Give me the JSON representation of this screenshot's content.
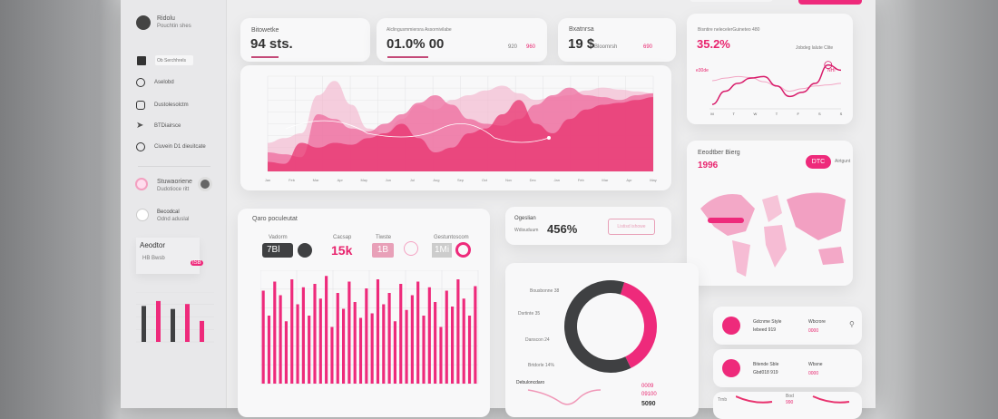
{
  "colors": {
    "accent": "#ee2a7b",
    "dark": "#3f4042",
    "light_pink": "#f6b6cf"
  },
  "sidebar": {
    "user": {
      "name": "Ridolu",
      "subtitle": "Pouchtin shes"
    },
    "search_placeholder": "Ob Serchhrels",
    "items": [
      {
        "label": "Aselobd",
        "icon": "chart-icon"
      },
      {
        "label": "Dustolesolctm",
        "icon": "chat-icon"
      },
      {
        "label": "BTDiairsce",
        "icon": "send-icon"
      },
      {
        "label": "Ciuvein D1 dieuitcate",
        "icon": "search-icon"
      }
    ],
    "profile": {
      "name": "Stuwaoriene",
      "subtitle": "Dudotioce ritt"
    },
    "account": {
      "name": "Becodcal",
      "subtitle": "Odnd aduslal"
    },
    "mini_widget": {
      "title": "Aeodtor",
      "label": "HB Bwsb",
      "badge": "ISB"
    },
    "mini_bars": [
      {
        "value": 72,
        "color": "#3f4042"
      },
      {
        "value": 82,
        "color": "#ee2a7b"
      },
      {
        "value": 66,
        "color": "#3f4042"
      },
      {
        "value": 76,
        "color": "#ee2a7b"
      },
      {
        "value": 42,
        "color": "#ee2a7b"
      }
    ]
  },
  "stats": [
    {
      "label": "Bitowetke",
      "value": "94 sts."
    },
    {
      "label": "Alclingusmmiersra Assornivilabe",
      "value": "01.0% 00",
      "extra1": "920",
      "extra2": "960"
    },
    {
      "label": "Bxatnrsa",
      "value": "19 $",
      "sub": "Bloomrsh",
      "extra": "690"
    }
  ],
  "area_chart": {
    "series": [
      {
        "color": "#f4b0ca",
        "values": [
          30,
          35,
          40,
          80,
          95,
          70,
          45,
          40,
          55,
          70,
          65,
          75,
          80,
          85,
          90,
          82,
          75,
          78,
          80,
          85,
          88,
          86,
          84,
          82
        ]
      },
      {
        "color": "#ee6a9c",
        "values": [
          20,
          18,
          15,
          60,
          55,
          45,
          42,
          50,
          60,
          72,
          80,
          70,
          55,
          50,
          48,
          55,
          70,
          80,
          88,
          80,
          78,
          75,
          80,
          82
        ]
      },
      {
        "color": "#e8336f",
        "values": [
          10,
          8,
          30,
          25,
          30,
          28,
          35,
          40,
          50,
          35,
          20,
          25,
          40,
          45,
          60,
          75,
          50,
          40,
          55,
          65,
          70,
          72,
          75,
          78
        ]
      }
    ],
    "x_labels": [
      "Jan",
      "Feb",
      "Mar",
      "Apr",
      "May",
      "Jun",
      "Jul",
      "Aug",
      "Sep",
      "Oct",
      "Nov",
      "Dec",
      "Jan",
      "Feb",
      "Mar",
      "Apr",
      "May"
    ]
  },
  "trend_card": {
    "label": "Bisntire nelecelerGuineteo 480",
    "value": "35.2%",
    "legend": "Jobdeg lalute Clite",
    "marker": "NHI",
    "side": "e30de",
    "x_labels": [
      "M",
      "T",
      "W",
      "T",
      "F",
      "S",
      "S"
    ],
    "values": [
      5,
      30,
      45,
      55,
      58,
      40,
      20,
      28,
      45,
      80,
      70
    ],
    "values2": [
      50,
      55,
      58,
      56,
      48,
      40,
      30,
      35,
      40,
      42,
      45
    ]
  },
  "bar_card": {
    "title": "Qaro poculeutat",
    "metrics": [
      {
        "label": "Vadorm",
        "value": "7Bl"
      },
      {
        "label": "Cacsap",
        "value": "15k"
      },
      {
        "label": "Tiwste",
        "value": "1B"
      },
      {
        "label": "Gestuntoscom",
        "value": "1Mi"
      }
    ],
    "values": [
      82,
      60,
      90,
      78,
      55,
      92,
      70,
      85,
      60,
      88,
      75,
      95,
      50,
      80,
      66,
      90,
      72,
      58,
      84,
      62,
      92,
      70,
      80,
      55,
      88,
      65,
      78,
      90,
      60,
      85,
      72,
      50,
      82,
      68,
      92,
      75,
      60,
      86
    ]
  },
  "small_card": {
    "label": "Ogeslian",
    "sub": "Wdisuduum",
    "value": "456%",
    "button": "Listisd ishowe"
  },
  "donut_card": {
    "segments": [
      {
        "value": 38,
        "color": "#ee2a7b"
      },
      {
        "value": 62,
        "color": "#3f4042"
      }
    ],
    "labels": [
      "Bousbonne 38",
      "Dsrtinte 35",
      "Danscon 24",
      "Brtdorle 14%"
    ],
    "footer_title": "Debuloncdaro",
    "footer_values": [
      "0009",
      "09100",
      "5090"
    ]
  },
  "map_card": {
    "title": "Eeodtber Bierg",
    "value": "1996",
    "button": "DTC",
    "side_label": "Airtgunt"
  },
  "list": [
    {
      "line1": "Gdcnme Style",
      "line2": "Iebeed 919",
      "label": "Wbcrore",
      "value": "0000"
    },
    {
      "line1": "Bitende Sble",
      "line2": "Gbd018 919",
      "label": "Wbsne",
      "value": "0000"
    },
    {
      "line1": "Trnb",
      "line2": "",
      "label": "Bod",
      "value": "990"
    }
  ]
}
